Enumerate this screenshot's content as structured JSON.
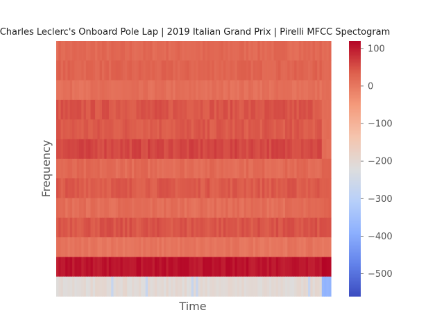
{
  "chart_data": {
    "type": "heatmap",
    "title": "Charles Leclerc's Onboard Pole Lap | 2019 Italian Grand Prix | Pirelli MFCC Spectogram",
    "xlabel": "Time",
    "ylabel": "Frequency",
    "n_coefficients": 13,
    "n_frames": 120,
    "rows_top_to_bottom": [
      {
        "coef": 12,
        "base": 22,
        "var": 10,
        "end": 20
      },
      {
        "coef": 11,
        "base": 28,
        "var": 10,
        "end": 22
      },
      {
        "coef": 10,
        "base": 12,
        "var": 10,
        "end": 15
      },
      {
        "coef": 9,
        "base": 45,
        "var": 12,
        "end": 15
      },
      {
        "coef": 8,
        "base": 40,
        "var": 12,
        "end": 18
      },
      {
        "coef": 7,
        "base": 58,
        "var": 12,
        "end": 15
      },
      {
        "coef": 6,
        "base": 20,
        "var": 12,
        "end": 30
      },
      {
        "coef": 5,
        "base": 40,
        "var": 12,
        "end": 40
      },
      {
        "coef": 4,
        "base": 15,
        "var": 12,
        "end": 30
      },
      {
        "coef": 3,
        "base": 45,
        "var": 12,
        "end": 50
      },
      {
        "coef": 2,
        "base": 5,
        "var": 10,
        "end": 0
      },
      {
        "coef": 1,
        "base": 105,
        "var": 12,
        "end": 120
      },
      {
        "coef": 0,
        "base": -205,
        "var": 15,
        "end": -380
      }
    ],
    "colorbar": {
      "colormap": "coolwarm",
      "vmin": -560,
      "vmax": 120,
      "ticks": [
        100,
        0,
        -100,
        -200,
        -300,
        -400,
        -500
      ],
      "tick_labels": [
        "100",
        "0",
        "−100",
        "−200",
        "−300",
        "−400",
        "−500"
      ]
    },
    "grid": false,
    "axis_ticks_shown": false
  }
}
